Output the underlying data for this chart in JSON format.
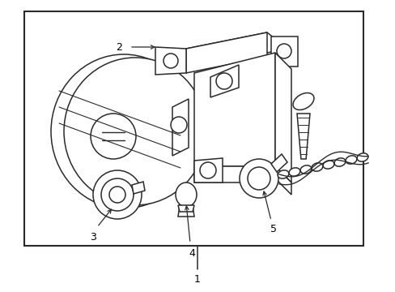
{
  "background_color": "#ffffff",
  "border_color": "#2a2a2a",
  "line_color": "#2a2a2a",
  "label_color": "#000000",
  "fig_width": 4.89,
  "fig_height": 3.6,
  "dpi": 100,
  "lw": 1.1
}
